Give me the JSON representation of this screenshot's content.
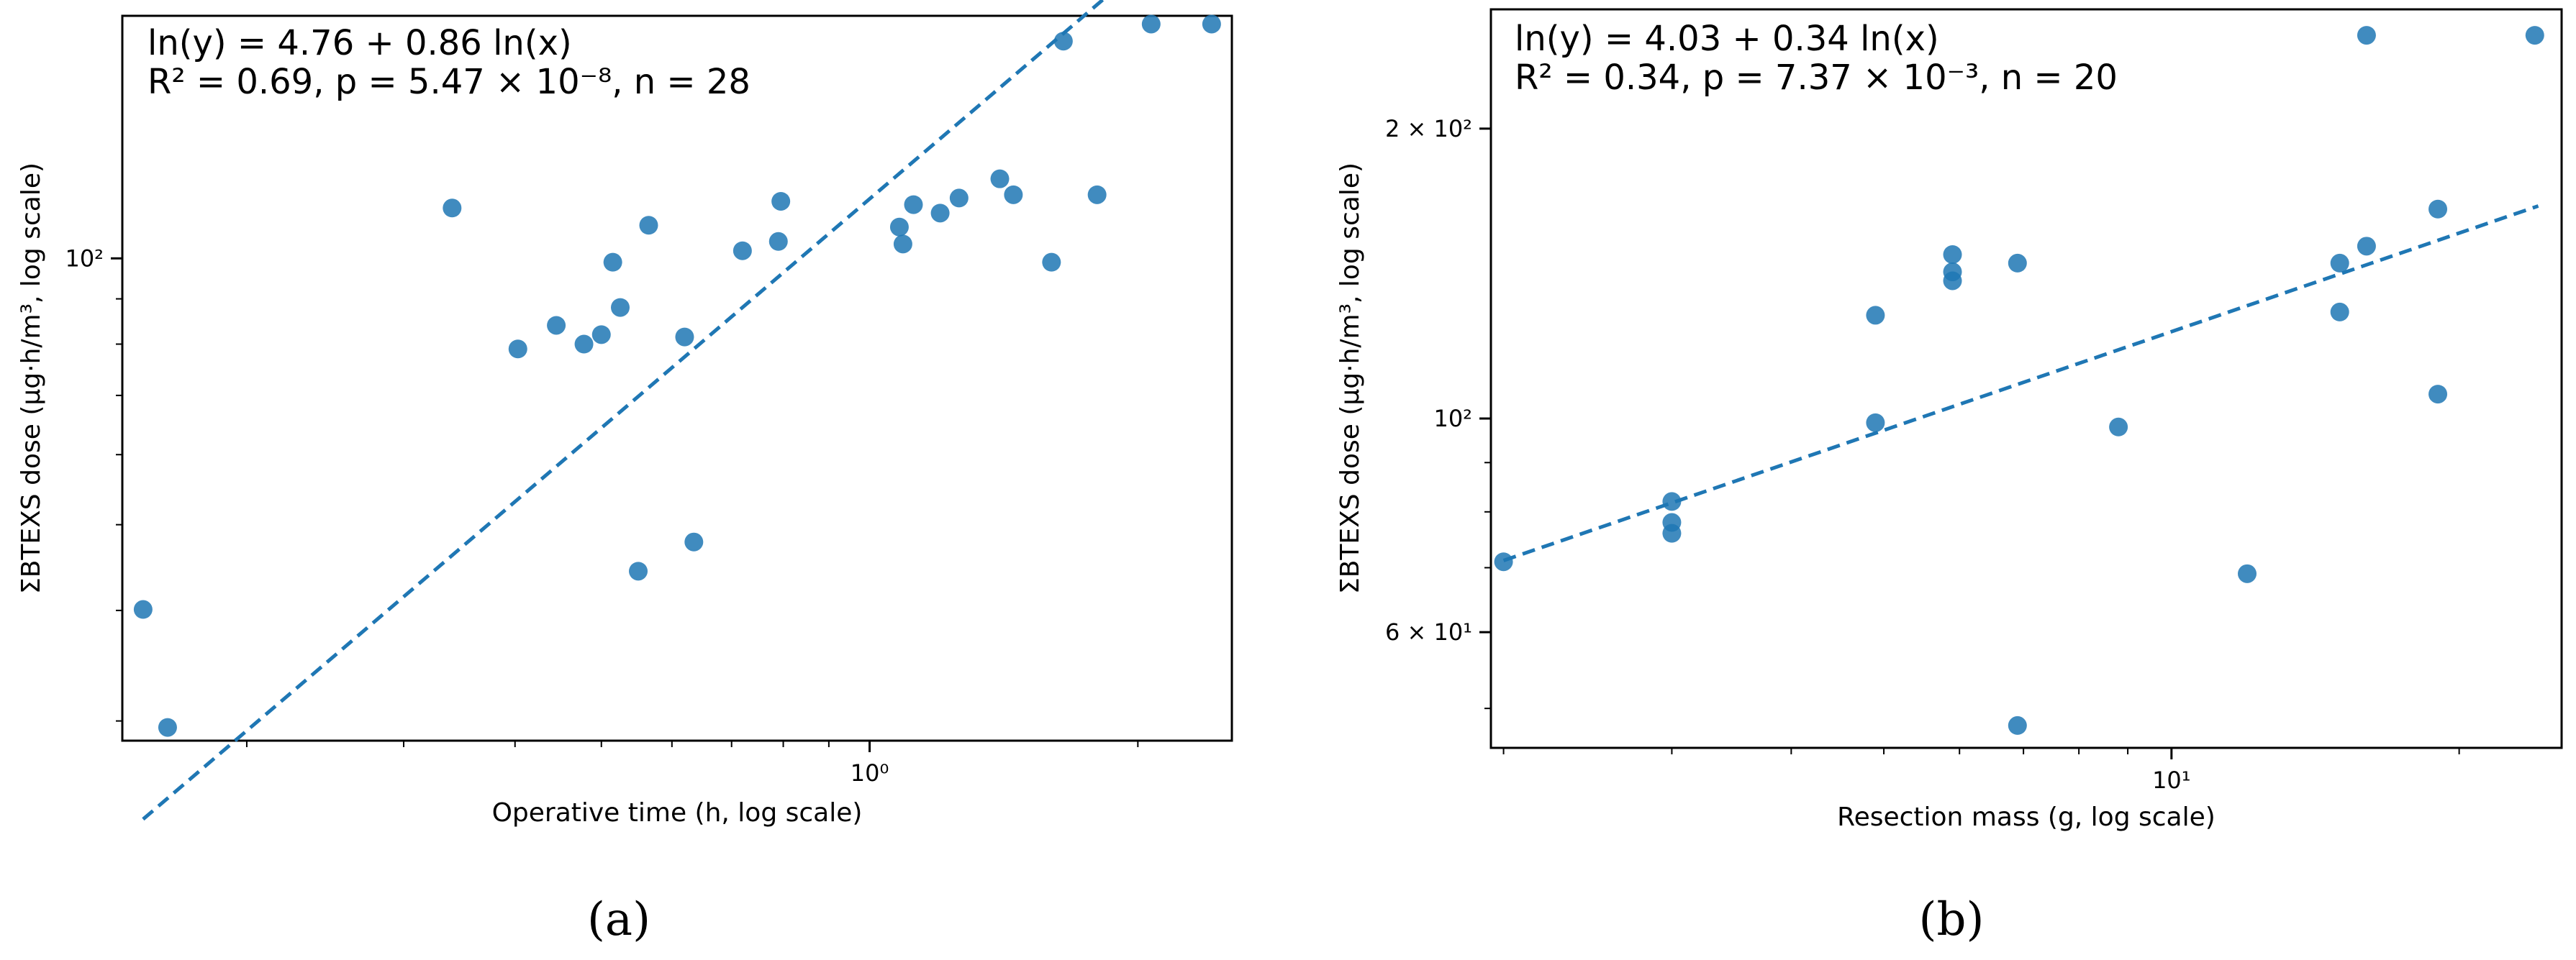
{
  "chart_data": [
    {
      "type": "scatter",
      "panel_label": "(a)",
      "xscale": "log",
      "yscale": "log",
      "xlabel": "Operative time (h, log scale)",
      "ylabel": "ΣBTEXS dose (µg·h/m³, log scale)",
      "xlim": [
        0.145,
        2.55
      ],
      "ylim": [
        28.5,
        188
      ],
      "x_ticks": [
        {
          "value": 1,
          "label": "10⁰"
        }
      ],
      "y_ticks": [
        {
          "value": 100,
          "label": "10²"
        }
      ],
      "annotation": {
        "line1": "ln(y) = 4.76 + 0.86 ln(x)",
        "line2": "R² = 0.69, p = 5.47 × 10⁻⁸, n = 28"
      },
      "fit": {
        "intercept": 4.76,
        "slope": 0.86,
        "x_range": [
          0.153,
          2.45
        ]
      },
      "points": [
        [
          0.153,
          40.1
        ],
        [
          0.163,
          29.5
        ],
        [
          0.34,
          114
        ],
        [
          0.403,
          79
        ],
        [
          0.445,
          84
        ],
        [
          0.478,
          80
        ],
        [
          0.5,
          82
        ],
        [
          0.515,
          99
        ],
        [
          0.525,
          88
        ],
        [
          0.55,
          44.3
        ],
        [
          0.565,
          109
        ],
        [
          0.62,
          81.5
        ],
        [
          0.635,
          47.8
        ],
        [
          0.72,
          102
        ],
        [
          0.79,
          104.5
        ],
        [
          0.795,
          116
        ],
        [
          1.08,
          108.5
        ],
        [
          1.09,
          103.8
        ],
        [
          1.12,
          115
        ],
        [
          1.2,
          112.5
        ],
        [
          1.26,
          117
        ],
        [
          1.4,
          123
        ],
        [
          1.45,
          118
        ],
        [
          1.6,
          99
        ],
        [
          1.65,
          176
        ],
        [
          1.8,
          118
        ],
        [
          2.07,
          184
        ],
        [
          2.42,
          184
        ]
      ]
    },
    {
      "type": "scatter",
      "panel_label": "(b)",
      "xscale": "log",
      "yscale": "log",
      "xlabel": "Resection mass (g, log scale)",
      "ylabel": "ΣBTEXS dose (µg·h/m³, log scale)",
      "xlim": [
        1.94,
        25.6
      ],
      "ylim": [
        45.5,
        266
      ],
      "x_ticks": [
        {
          "value": 10,
          "label": "10¹"
        }
      ],
      "y_ticks": [
        {
          "value": 60,
          "label": "6 × 10¹"
        },
        {
          "value": 100,
          "label": "10²"
        },
        {
          "value": 200,
          "label": "2 × 10²"
        }
      ],
      "annotation": {
        "line1": "ln(y) = 4.03 + 0.34 ln(x)",
        "line2": "R² = 0.34, p = 7.37 × 10⁻³, n = 20"
      },
      "fit": {
        "intercept": 4.03,
        "slope": 0.34,
        "x_range": [
          2.0,
          24.2
        ]
      },
      "points": [
        [
          2.0,
          71
        ],
        [
          3.0,
          82
        ],
        [
          3.0,
          78
        ],
        [
          3.0,
          76
        ],
        [
          4.9,
          99
        ],
        [
          4.9,
          128
        ],
        [
          5.9,
          148
        ],
        [
          5.9,
          142
        ],
        [
          5.9,
          139
        ],
        [
          6.9,
          145
        ],
        [
          6.9,
          48
        ],
        [
          8.8,
          98
        ],
        [
          12.0,
          69
        ],
        [
          15.0,
          129
        ],
        [
          15.0,
          145
        ],
        [
          16.0,
          151
        ],
        [
          16.0,
          250
        ],
        [
          19.0,
          165
        ],
        [
          19.0,
          106
        ],
        [
          24.0,
          250
        ]
      ]
    }
  ]
}
